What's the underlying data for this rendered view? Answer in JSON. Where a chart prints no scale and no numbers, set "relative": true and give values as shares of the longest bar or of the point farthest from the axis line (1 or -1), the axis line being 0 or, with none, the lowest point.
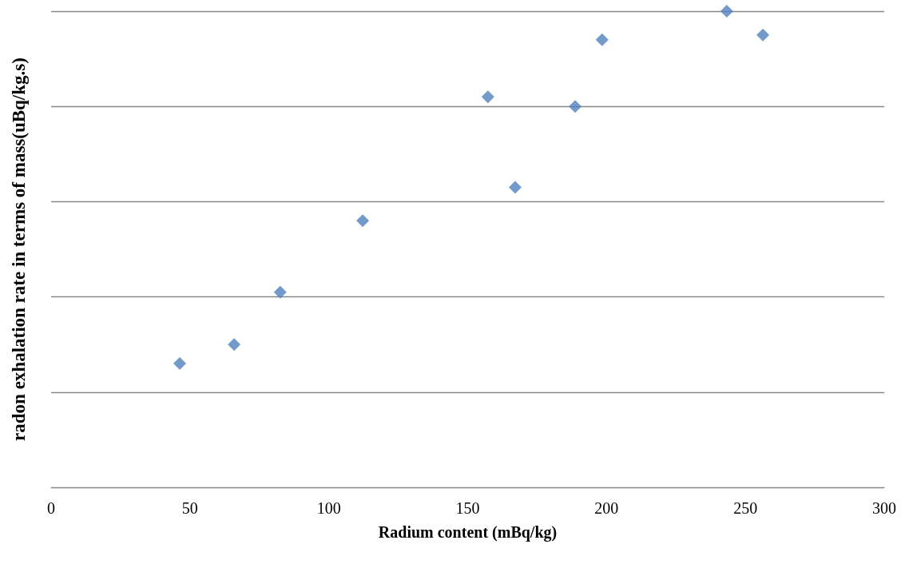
{
  "chart_data": {
    "type": "scatter",
    "xlabel": "Radium content (mBq/kg)",
    "ylabel": "radon exhalation rate in terms of mass(uBq/kg.s)",
    "relative": true,
    "x": [
      46.3,
      65.9,
      82.5,
      112.2,
      157.3,
      167.1,
      188.7,
      198.4,
      243.3,
      256.3
    ],
    "series": [
      {
        "color": "#4f81bd",
        "values": [
          0.26,
          0.3,
          0.41,
          0.56,
          0.82,
          0.63,
          0.8,
          0.94,
          1,
          0.95
        ]
      }
    ],
    "xlim": [
      0,
      300
    ],
    "xticks": [
      0,
      50,
      100,
      150,
      200,
      250,
      300
    ],
    "grid": "y",
    "marker": "diamond",
    "tick_labels": "x"
  }
}
